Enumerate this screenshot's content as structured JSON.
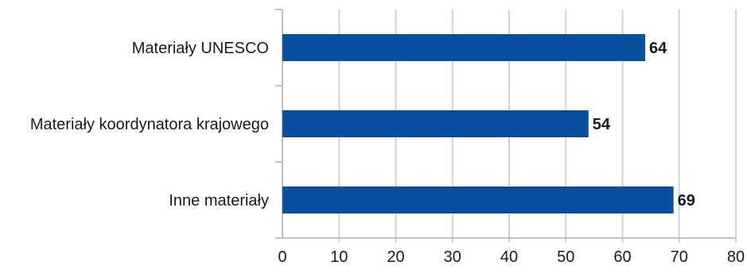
{
  "chart_data": {
    "type": "bar",
    "orientation": "horizontal",
    "categories": [
      "Materiały UNESCO",
      "Materiały koordynatora krajowego",
      "Inne materiały"
    ],
    "values": [
      64,
      54,
      69
    ],
    "data_labels": [
      "64",
      "54",
      "69"
    ],
    "xlim": [
      0,
      80
    ],
    "x_ticks": [
      0,
      10,
      20,
      30,
      40,
      50,
      60,
      70,
      80
    ],
    "x_tick_labels": [
      "0",
      "10",
      "20",
      "30",
      "40",
      "50",
      "60",
      "70",
      "80"
    ],
    "grid": "vertical",
    "legend": "none",
    "colors": {
      "bar": "#0750A0",
      "grid": "#D9CFCF",
      "axis": "#C8BEBE",
      "text": "#1a1a1a"
    }
  }
}
